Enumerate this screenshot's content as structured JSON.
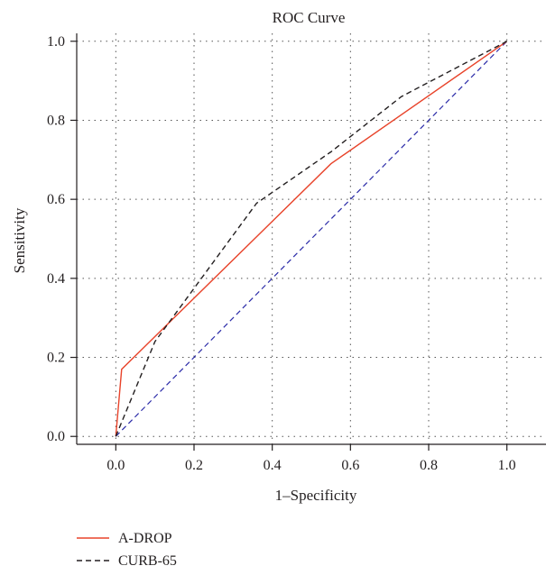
{
  "chart_data": {
    "type": "line",
    "title": "ROC Curve",
    "xlabel": "1–Specificity",
    "ylabel": "Sensitivity",
    "xlim": [
      -0.1,
      1.1
    ],
    "ylim": [
      -0.02,
      1.02
    ],
    "xticks": [
      0.0,
      0.2,
      0.4,
      0.6,
      0.8,
      1.0
    ],
    "xtick_labels": [
      "0.0",
      "0.2",
      "0.4",
      "0.6",
      "0.8",
      "1.0"
    ],
    "yticks": [
      0.0,
      0.2,
      0.4,
      0.6,
      0.8,
      1.0
    ],
    "ytick_labels": [
      "0.0",
      "0.2",
      "0.4",
      "0.6",
      "0.8",
      "1.0"
    ],
    "grid": true,
    "legend_position": "bottom-left",
    "series": [
      {
        "name": "A-DROP",
        "color": "#e8432a",
        "style": "solid",
        "x": [
          0.0,
          0.015,
          0.55,
          1.0
        ],
        "y": [
          0.0,
          0.17,
          0.69,
          1.0
        ]
      },
      {
        "name": "CURB-65",
        "color": "#231f20",
        "style": "dashed",
        "x": [
          0.0,
          0.1,
          0.36,
          0.55,
          0.73,
          1.0
        ],
        "y": [
          0.0,
          0.24,
          0.59,
          0.72,
          0.86,
          1.0
        ]
      }
    ],
    "reference_line": {
      "color": "#2b2ba8",
      "style": "dashed",
      "x": [
        0.0,
        1.0
      ],
      "y": [
        0.0,
        1.0
      ]
    }
  }
}
